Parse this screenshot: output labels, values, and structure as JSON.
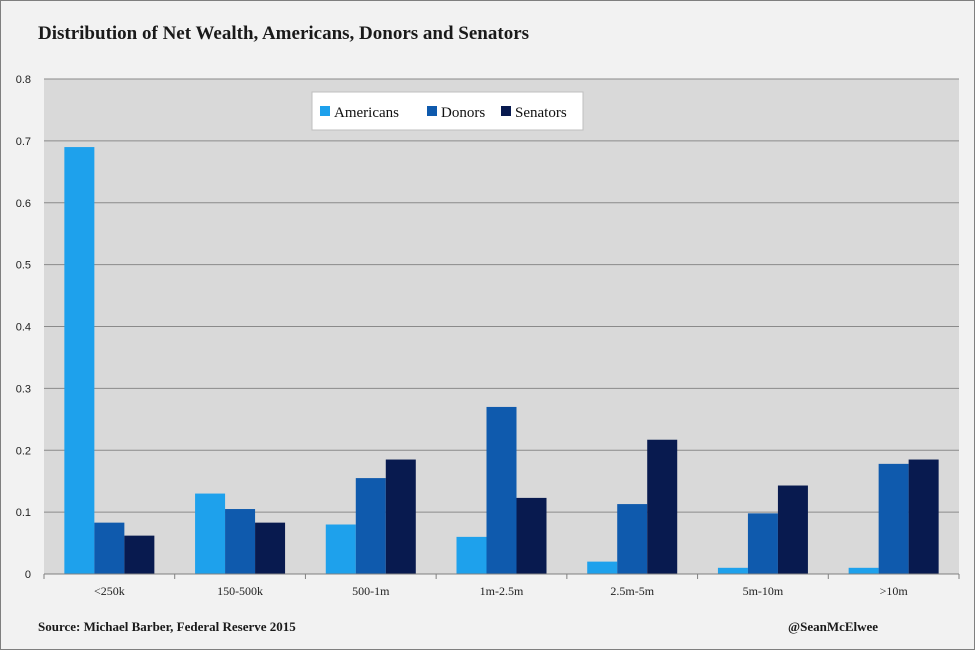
{
  "header": {
    "title": "Distribution of Net Wealth, Americans, Donors and Senators"
  },
  "footer": {
    "source": "Source: Michael Barber, Federal Reserve 2015",
    "handle": "@SeanMcElwee"
  },
  "colors": {
    "Americans": "#1ea1ec",
    "Donors": "#0f5aad",
    "Senators": "#081a4f",
    "plot_bg": "#d9d9d9",
    "grid": "#8a8a8a"
  },
  "chart_data": {
    "type": "bar",
    "title": "Distribution of Net Wealth, Americans, Donors and Senators",
    "xlabel": "",
    "ylabel": "",
    "categories": [
      "<250k",
      "150-500k",
      "500-1m",
      "1m-2.5m",
      "2.5m-5m",
      "5m-10m",
      ">10m"
    ],
    "series": [
      {
        "name": "Americans",
        "values": [
          0.69,
          0.13,
          0.08,
          0.06,
          0.02,
          0.01,
          0.01
        ]
      },
      {
        "name": "Donors",
        "values": [
          0.083,
          0.105,
          0.155,
          0.27,
          0.113,
          0.098,
          0.178
        ]
      },
      {
        "name": "Senators",
        "values": [
          0.062,
          0.083,
          0.185,
          0.123,
          0.217,
          0.143,
          0.185
        ]
      }
    ],
    "ylim": [
      0,
      0.8
    ],
    "yticks": [
      "0",
      "0.1",
      "0.2",
      "0.3",
      "0.4",
      "0.5",
      "0.6",
      "0.7",
      "0.8"
    ],
    "grid": true,
    "legend": "top-center"
  }
}
